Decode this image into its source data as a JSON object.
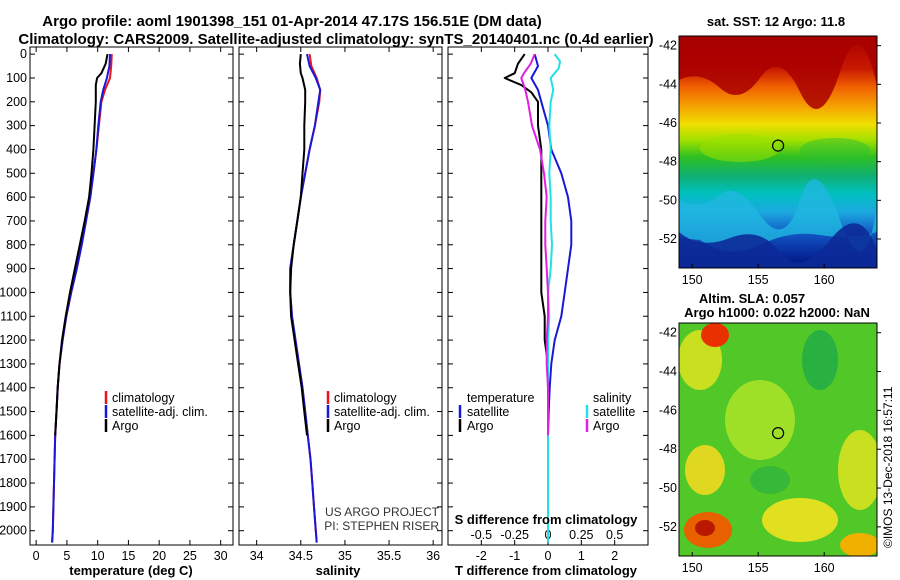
{
  "title_line1": "Argo profile: aoml 1901398_151 01-Apr-2014 47.17S 156.51E (DM data)",
  "title_line2": "Climatology: CARS2009. Satellite-adjusted climatology: synTS_20140401.nc (0.4d earlier)",
  "colors": {
    "climatology": "#e8141e",
    "satellite": "#1818d8",
    "argo": "#000000",
    "sat_salinity": "#20e0e8",
    "argo_salinity": "#e020e0"
  },
  "depth_ticks": [
    "0",
    "100",
    "200",
    "300",
    "400",
    "500",
    "600",
    "700",
    "800",
    "900",
    "1000",
    "1100",
    "1200",
    "1300",
    "1400",
    "1500",
    "1600",
    "1700",
    "1800",
    "1900",
    "2000"
  ],
  "legend": {
    "climatology": "climatology",
    "satellite": "satellite-adj. clim.",
    "argo": "Argo"
  },
  "diff_legend": {
    "temperature": "temperature",
    "salinity": "salinity",
    "satellite": "satellite",
    "argo": "Argo"
  },
  "credits": {
    "line1": "US ARGO PROJECT",
    "line2": "PI: STEPHEN RISER"
  },
  "timestamp": "©IMOS 13-Dec-2018 16:57:11",
  "chart_data": [
    {
      "type": "line",
      "title": "",
      "xlabel": "temperature (deg C)",
      "ylabel": "depth",
      "xlim": [
        -1,
        32
      ],
      "ylim": [
        2060,
        -30
      ],
      "xticks": [
        0,
        5,
        10,
        15,
        20,
        25,
        30
      ],
      "xtick_labels": [
        "0",
        "5",
        "10",
        "15",
        "20",
        "25",
        "30"
      ],
      "series": [
        {
          "name": "climatology",
          "depth": [
            0,
            50,
            100,
            150,
            200,
            300,
            400,
            500,
            600,
            700,
            800,
            900,
            1000,
            1100,
            1200,
            1300,
            1400,
            1500,
            1600,
            1700,
            1800,
            1900,
            2000,
            2050
          ],
          "values": [
            12.3,
            12.2,
            12.0,
            11.2,
            10.6,
            10.2,
            9.8,
            9.3,
            8.8,
            8.1,
            7.4,
            6.6,
            5.7,
            4.9,
            4.3,
            3.8,
            3.5,
            3.3,
            3.1,
            3.0,
            2.9,
            2.8,
            2.7,
            2.6
          ]
        },
        {
          "name": "satellite-adj. clim.",
          "depth": [
            0,
            50,
            100,
            150,
            200,
            300,
            400,
            500,
            600,
            700,
            800,
            900,
            1000,
            1100,
            1200,
            1300,
            1400,
            1500,
            1600,
            1700,
            1800,
            1900,
            2000,
            2050
          ],
          "values": [
            12.0,
            11.9,
            11.5,
            10.9,
            10.5,
            10.1,
            9.8,
            9.3,
            8.8,
            8.1,
            7.4,
            6.6,
            5.7,
            4.9,
            4.3,
            3.8,
            3.5,
            3.3,
            3.1,
            3.0,
            2.9,
            2.8,
            2.7,
            2.6
          ]
        },
        {
          "name": "Argo",
          "depth": [
            0,
            40,
            80,
            100,
            130,
            160,
            200,
            300,
            400,
            500,
            600,
            700,
            800,
            900,
            1000,
            1100,
            1200,
            1300,
            1400,
            1500,
            1600
          ],
          "values": [
            11.6,
            11.3,
            10.6,
            9.9,
            9.7,
            9.7,
            9.7,
            9.5,
            9.3,
            9.0,
            8.6,
            7.9,
            7.1,
            6.3,
            5.5,
            4.8,
            4.2,
            3.8,
            3.5,
            3.3,
            3.1
          ]
        }
      ]
    },
    {
      "type": "line",
      "title": "",
      "xlabel": "salinity",
      "ylabel": "depth",
      "xlim": [
        33.8,
        36.1
      ],
      "ylim": [
        2060,
        -30
      ],
      "xticks": [
        34,
        34.5,
        35,
        35.5,
        36
      ],
      "xtick_labels": [
        "34",
        "34.5",
        "35",
        "35.5",
        "36"
      ],
      "series": [
        {
          "name": "climatology",
          "depth": [
            0,
            50,
            100,
            150,
            200,
            300,
            400,
            500,
            600,
            700,
            800,
            900,
            1000,
            1100,
            1200,
            1300,
            1400,
            1500,
            1600,
            1700,
            1800,
            1900,
            2000,
            2050
          ],
          "values": [
            34.6,
            34.62,
            34.68,
            34.72,
            34.71,
            34.66,
            34.6,
            34.55,
            34.5,
            34.46,
            34.42,
            34.38,
            34.38,
            34.4,
            34.44,
            34.48,
            34.52,
            34.55,
            34.58,
            34.61,
            34.63,
            34.65,
            34.67,
            34.68
          ]
        },
        {
          "name": "satellite-adj. clim.",
          "depth": [
            0,
            50,
            100,
            150,
            200,
            300,
            400,
            500,
            600,
            700,
            800,
            900,
            1000,
            1100,
            1200,
            1300,
            1400,
            1500,
            1600,
            1700,
            1800,
            1900,
            2000,
            2050
          ],
          "values": [
            34.57,
            34.6,
            34.67,
            34.72,
            34.7,
            34.66,
            34.6,
            34.55,
            34.5,
            34.46,
            34.42,
            34.38,
            34.38,
            34.4,
            34.44,
            34.48,
            34.52,
            34.55,
            34.58,
            34.61,
            34.63,
            34.65,
            34.67,
            34.68
          ]
        },
        {
          "name": "Argo",
          "depth": [
            0,
            40,
            80,
            100,
            150,
            200,
            300,
            400,
            500,
            600,
            700,
            800,
            900,
            1000,
            1100,
            1200,
            1300,
            1400,
            1500,
            1600
          ],
          "values": [
            34.5,
            34.49,
            34.5,
            34.52,
            34.55,
            34.55,
            34.54,
            34.54,
            34.52,
            34.5,
            34.46,
            34.42,
            34.39,
            34.38,
            34.39,
            34.43,
            34.47,
            34.51,
            34.54,
            34.57
          ]
        }
      ]
    },
    {
      "type": "line",
      "title": "",
      "xlabel": "T difference from climatology",
      "ylabel": "depth",
      "xlim": [
        -3,
        3
      ],
      "ylim": [
        2060,
        -30
      ],
      "xticks": [
        -2,
        -1,
        0,
        1,
        2
      ],
      "xtick_labels": [
        "-2",
        "-1",
        "0",
        "1",
        "2"
      ],
      "secondary_axis": {
        "label": "S difference from climatology",
        "ticks": [
          -0.5,
          -0.25,
          0,
          0.25,
          0.5
        ],
        "tick_labels": [
          "-0.5",
          "-0.25",
          "0",
          "0.25",
          "0.5"
        ]
      },
      "series": [
        {
          "name": "satellite (temperature)",
          "depth": [
            0,
            50,
            100,
            150,
            200,
            300,
            400,
            500,
            600,
            700,
            800,
            900,
            1000,
            1100,
            1200,
            1300,
            1400,
            1500,
            1600,
            1700,
            1800,
            1900,
            2000,
            2050
          ],
          "values": [
            -0.4,
            -0.3,
            -0.5,
            -0.3,
            -0.2,
            0,
            0.1,
            0.4,
            0.6,
            0.7,
            0.7,
            0.6,
            0.5,
            0.4,
            0.2,
            0.1,
            0.05,
            0.02,
            0,
            0,
            0,
            0,
            0,
            0
          ]
        },
        {
          "name": "Argo (temperature)",
          "depth": [
            0,
            40,
            80,
            100,
            130,
            160,
            200,
            300,
            400,
            500,
            600,
            700,
            800,
            900,
            1000,
            1100,
            1200,
            1300,
            1400,
            1500,
            1600
          ],
          "values": [
            -0.7,
            -0.9,
            -1.0,
            -1.3,
            -0.8,
            -0.5,
            -0.3,
            -0.3,
            -0.2,
            -0.2,
            -0.2,
            -0.2,
            -0.2,
            -0.2,
            -0.2,
            -0.1,
            -0.1,
            0,
            0,
            0,
            0
          ]
        },
        {
          "name": "satellite (salinity)",
          "depth": [
            0,
            30,
            60,
            100,
            150,
            200,
            300,
            400,
            500,
            600,
            700,
            800,
            900,
            1000,
            1100,
            1200,
            1300,
            1400,
            1500,
            1600,
            1700,
            1800,
            1900,
            2000,
            2050
          ],
          "values": [
            0.05,
            0.09,
            0.08,
            0.02,
            0.04,
            0.02,
            0.01,
            0.02,
            0.01,
            0.02,
            0.02,
            0.03,
            0.02,
            0,
            0.01,
            0,
            0,
            0,
            0,
            0,
            0,
            0,
            0,
            0,
            0
          ]
        },
        {
          "name": "Argo (salinity)",
          "depth": [
            0,
            40,
            80,
            100,
            150,
            200,
            300,
            400,
            500,
            600,
            700,
            800,
            900,
            1000,
            1100,
            1200,
            1300,
            1400,
            1500,
            1600
          ],
          "values": [
            -0.1,
            -0.13,
            -0.18,
            -0.2,
            -0.17,
            -0.15,
            -0.12,
            -0.06,
            -0.03,
            -0.01,
            -0.02,
            -0.02,
            -0.01,
            0,
            0,
            -0.01,
            -0.01,
            0,
            0,
            0
          ]
        }
      ]
    },
    {
      "type": "heatmap",
      "title": "sat. SST: 12 Argo: 11.8",
      "xlabel": "",
      "ylabel": "",
      "xlim": [
        149,
        164
      ],
      "ylim": [
        -53.5,
        -41.5
      ],
      "xticks": [
        150,
        155,
        160
      ],
      "xtick_labels": [
        "150",
        "155",
        "160"
      ],
      "yticks": [
        -42,
        -44,
        -46,
        -48,
        -50,
        -52
      ],
      "ytick_labels": [
        "-42",
        "-44",
        "-46",
        "-48",
        "-50",
        "-52"
      ],
      "marker": {
        "lon": 156.51,
        "lat": -47.17
      }
    },
    {
      "type": "heatmap",
      "title": "Altim. SLA: 0.057",
      "subtitle": "Argo h1000: 0.022 h2000: NaN",
      "xlabel": "",
      "ylabel": "",
      "xlim": [
        149,
        164
      ],
      "ylim": [
        -53.5,
        -41.5
      ],
      "xticks": [
        150,
        155,
        160
      ],
      "xtick_labels": [
        "150",
        "155",
        "160"
      ],
      "yticks": [
        -42,
        -44,
        -46,
        -48,
        -50,
        -52
      ],
      "ytick_labels": [
        "-42",
        "-44",
        "-46",
        "-48",
        "-50",
        "-52"
      ],
      "marker": {
        "lon": 156.51,
        "lat": -47.17
      }
    }
  ]
}
